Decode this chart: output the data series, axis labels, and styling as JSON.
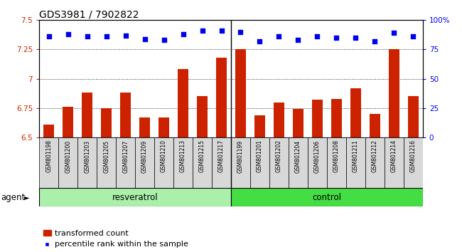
{
  "title": "GDS3981 / 7902822",
  "categories": [
    "GSM801198",
    "GSM801200",
    "GSM801203",
    "GSM801205",
    "GSM801207",
    "GSM801209",
    "GSM801210",
    "GSM801213",
    "GSM801215",
    "GSM801217",
    "GSM801199",
    "GSM801201",
    "GSM801202",
    "GSM801204",
    "GSM801206",
    "GSM801208",
    "GSM801211",
    "GSM801212",
    "GSM801214",
    "GSM801216"
  ],
  "bar_values": [
    6.61,
    6.76,
    6.88,
    6.75,
    6.88,
    6.67,
    6.67,
    7.08,
    6.85,
    7.18,
    7.25,
    6.69,
    6.8,
    6.74,
    6.82,
    6.83,
    6.92,
    6.7,
    7.25,
    6.85
  ],
  "percentile_values": [
    86,
    88,
    86,
    86,
    87,
    84,
    83,
    88,
    91,
    91,
    90,
    82,
    86,
    83,
    86,
    85,
    85,
    82,
    89,
    86
  ],
  "resveratrol_count": 10,
  "control_count": 10,
  "ylim": [
    6.5,
    7.5
  ],
  "y2lim": [
    0,
    100
  ],
  "yticks": [
    6.5,
    6.75,
    7.0,
    7.25,
    7.5
  ],
  "ytick_labels": [
    "6.5",
    "6.75",
    "7",
    "7.25",
    "7.5"
  ],
  "y2ticks": [
    0,
    25,
    50,
    75,
    100
  ],
  "y2tick_labels": [
    "0",
    "25",
    "50",
    "75",
    "100%"
  ],
  "hlines": [
    6.75,
    7.0,
    7.25
  ],
  "bar_color": "#cc2200",
  "dot_color": "#0000ee",
  "resveratrol_color": "#aaf0aa",
  "control_color": "#44dd44",
  "agent_label": "agent",
  "resveratrol_label": "resveratrol",
  "control_label": "control",
  "legend_bar_label": "transformed count",
  "legend_dot_label": "percentile rank within the sample",
  "title_fontsize": 10,
  "tick_fontsize": 7.5,
  "label_fontsize": 8.5,
  "bar_width": 0.55,
  "bg_color": "#ffffff",
  "xtick_bg": "#d8d8d8"
}
